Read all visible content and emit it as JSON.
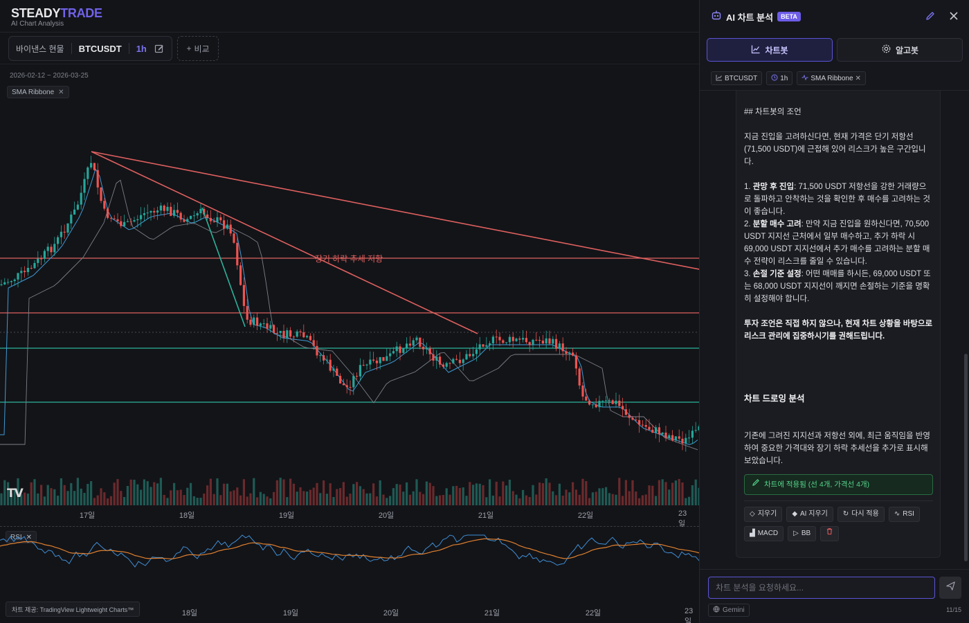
{
  "brand": {
    "name_main": "STEADY",
    "name_accent": "TRADE",
    "subtitle": "AI Chart Analysis"
  },
  "symbol_bar": {
    "exchange": "바이낸스 현물",
    "symbol": "BTCUSDT",
    "timeframe": "1h",
    "compare_label": "비교"
  },
  "chart": {
    "date_range": "2026-02-12 ~ 2026-03-25",
    "indicator_chip": "SMA Ribbone",
    "resistance_label": "장기 하락 추세 저항",
    "time_labels": [
      "17일",
      "18일",
      "19일",
      "20일",
      "21일",
      "22일",
      "23일"
    ],
    "rsi_chip": "RSI",
    "rsi_time_labels": [
      "18일",
      "19일",
      "20일",
      "21일",
      "22일",
      "23일"
    ],
    "credit": "차트 제공: TradingView Lightweight Charts™",
    "colors": {
      "up": "#26a69a",
      "down": "#ef5350",
      "resistance": "#e0605f",
      "support": "#2bb39a"
    }
  },
  "ai_panel": {
    "title": "AI 차트 분석",
    "badge": "BETA",
    "tabs": [
      {
        "label": "차트봇",
        "icon": "chart-line-icon",
        "active": true
      },
      {
        "label": "알고봇",
        "icon": "gear-icon",
        "active": false
      }
    ],
    "context_chips": [
      "BTCUSDT",
      "1h",
      "SMA Ribbone"
    ],
    "message": {
      "heading": "## 차트봇의 조언",
      "intro": "지금 진입을 고려하신다면, 현재 가격은 단기 저항선 (71,500 USDT)에 근접해 있어 리스크가 높은 구간입니다.",
      "items": [
        {
          "num": "1. ",
          "bold": "관망 후 진입",
          "text": ": 71,500 USDT 저항선을 강한 거래량으로 돌파하고 안착하는 것을 확인한 후 매수를 고려하는 것이 좋습니다."
        },
        {
          "num": "2. ",
          "bold": "분할 매수 고려",
          "text": ": 만약 지금 진입을 원하신다면, 70,500 USDT 지지선 근처에서 일부 매수하고, 추가 하락 시 69,000 USDT 지지선에서 추가 매수를 고려하는 분할 매수 전략이 리스크를 줄일 수 있습니다."
        },
        {
          "num": "3. ",
          "bold": "손절 기준 설정",
          "text": ": 어떤 매매를 하시든, 69,000 USDT 또는 68,000 USDT 지지선이 깨지면 손절하는 기준을 명확히 설정해야 합니다."
        }
      ],
      "closing": "투자 조언은 직접 하지 않으나, 현재 차트 상황을 바탕으로 리스크 관리에 집중하시기를 권해드립니다.",
      "drawing_heading": "차트 드로잉 분석",
      "drawing_text": "기존에 그려진 지지선과 저항선 외에, 최근 움직임을 반영하여 중요한 가격대와 장기 하락 추세선을 추가로 표시해 보았습니다.",
      "applied": "차트에 적용됨 (선 4개, 가격선 4개)"
    },
    "actions": [
      {
        "label": "지우기",
        "icon": "eraser-icon"
      },
      {
        "label": "AI 지우기",
        "icon": "ai-eraser-icon"
      },
      {
        "label": "다시 적용",
        "icon": "refresh-icon"
      },
      {
        "label": "RSI",
        "icon": "pulse-icon"
      },
      {
        "label": "MACD",
        "icon": "bars-icon"
      },
      {
        "label": "BB",
        "icon": "play-icon"
      },
      {
        "label": "",
        "icon": "trash-icon"
      }
    ],
    "input_placeholder": "차트 분석을 요청하세요...",
    "model": "Gemini",
    "counter": "11/15"
  }
}
